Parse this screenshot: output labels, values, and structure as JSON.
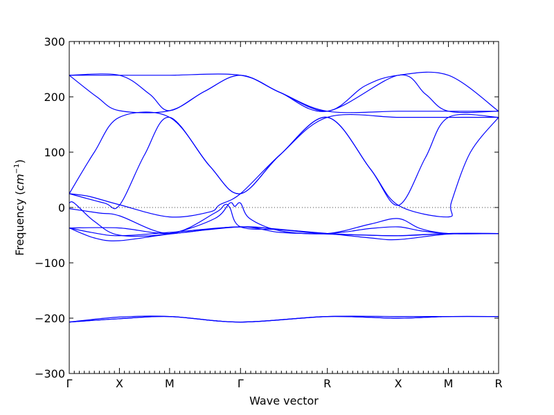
{
  "chart_data": {
    "type": "line",
    "title": "",
    "xlabel": "Wave vector",
    "ylabel": "Frequency",
    "ylabel_unit": "cm",
    "ylabel_unit_exp": "−1",
    "ylim": [
      -300,
      300
    ],
    "yticks": [
      -300,
      -200,
      -100,
      0,
      100,
      200,
      300
    ],
    "high_symmetry_points": [
      {
        "label": "Γ",
        "x": 0
      },
      {
        "label": "X",
        "x": 1
      },
      {
        "label": "M",
        "x": 2
      },
      {
        "label": "Γ",
        "x": 3.414
      },
      {
        "label": "R",
        "x": 5.146
      },
      {
        "label": "X",
        "x": 6.56
      },
      {
        "label": "M",
        "x": 7.56
      },
      {
        "label": "R",
        "x": 8.56
      }
    ],
    "zero_line": true,
    "line_color": "#0000ff",
    "series": [
      {
        "values": [
          [
            0,
            239
          ],
          [
            1,
            239
          ],
          [
            2,
            239
          ],
          [
            3.414,
            239
          ],
          [
            4.2,
            208
          ],
          [
            5.146,
            174
          ],
          [
            5.9,
            220
          ],
          [
            6.56,
            239
          ],
          [
            7.56,
            239
          ],
          [
            8.56,
            174
          ]
        ]
      },
      {
        "values": [
          [
            0,
            239
          ],
          [
            0.55,
            200
          ],
          [
            1,
            175
          ],
          [
            2,
            175
          ],
          [
            2.7,
            210
          ],
          [
            3.414,
            239
          ],
          [
            4.2,
            208
          ],
          [
            5.146,
            174
          ],
          [
            6.56,
            174
          ],
          [
            7.56,
            174
          ],
          [
            8.56,
            174
          ]
        ]
      },
      {
        "values": [
          [
            0,
            239
          ],
          [
            1,
            239
          ],
          [
            1.6,
            205
          ],
          [
            2,
            175
          ],
          [
            2.7,
            210
          ],
          [
            3.414,
            239
          ],
          [
            4.2,
            208
          ],
          [
            5.146,
            174
          ],
          [
            6.56,
            239
          ],
          [
            7.1,
            205
          ],
          [
            7.56,
            174
          ],
          [
            8.56,
            174
          ]
        ]
      },
      {
        "values": [
          [
            0,
            25
          ],
          [
            0.5,
            100
          ],
          [
            1,
            163
          ],
          [
            2,
            163
          ],
          [
            2.8,
            75
          ],
          [
            3.414,
            25
          ],
          [
            4.2,
            95
          ],
          [
            5.146,
            163
          ],
          [
            6.56,
            163
          ],
          [
            7.56,
            163
          ],
          [
            8.56,
            163
          ]
        ]
      },
      {
        "values": [
          [
            0,
            25
          ],
          [
            0.7,
            8
          ],
          [
            1,
            4
          ],
          [
            1.5,
            95
          ],
          [
            2,
            163
          ],
          [
            2.8,
            75
          ],
          [
            3.414,
            25
          ],
          [
            4.2,
            95
          ],
          [
            5.146,
            163
          ],
          [
            6.0,
            70
          ],
          [
            6.56,
            4
          ],
          [
            7.1,
            90
          ],
          [
            7.56,
            163
          ],
          [
            8.56,
            163
          ]
        ]
      },
      {
        "values": [
          [
            0,
            25
          ],
          [
            0.4,
            20
          ],
          [
            1,
            5
          ],
          [
            2,
            -17
          ],
          [
            2.8,
            -8
          ],
          [
            3.0,
            5
          ],
          [
            3.414,
            25
          ],
          [
            4.2,
            95
          ],
          [
            5.146,
            163
          ],
          [
            6.0,
            70
          ],
          [
            6.56,
            4
          ],
          [
            7.56,
            -17
          ],
          [
            7.62,
            10
          ],
          [
            8.0,
            100
          ],
          [
            8.56,
            163
          ]
        ]
      },
      {
        "values": [
          [
            0,
            8
          ],
          [
            0.1,
            8
          ],
          [
            0.5,
            -25
          ],
          [
            1,
            -50
          ],
          [
            2,
            -47
          ],
          [
            2.9,
            -20
          ],
          [
            3.2,
            8
          ],
          [
            3.3,
            2
          ],
          [
            3.414,
            8
          ],
          [
            3.6,
            -20
          ],
          [
            4.2,
            -42
          ],
          [
            5.146,
            -47
          ],
          [
            6.0,
            -30
          ],
          [
            6.56,
            -20
          ],
          [
            7.0,
            -38
          ],
          [
            7.56,
            -47
          ],
          [
            8.56,
            -47
          ]
        ]
      },
      {
        "values": [
          [
            0,
            -2
          ],
          [
            0.6,
            -10
          ],
          [
            1,
            -15
          ],
          [
            2,
            -47
          ],
          [
            2.9,
            -10
          ],
          [
            3.1,
            5
          ],
          [
            3.2,
            0
          ],
          [
            3.414,
            -35
          ],
          [
            4.2,
            -40
          ],
          [
            5.146,
            -47
          ],
          [
            6.0,
            -38
          ],
          [
            6.56,
            -35
          ],
          [
            7.0,
            -42
          ],
          [
            7.56,
            -47
          ],
          [
            8.56,
            -47
          ]
        ]
      },
      {
        "values": [
          [
            0,
            -37
          ],
          [
            0.5,
            -55
          ],
          [
            1,
            -60
          ],
          [
            2,
            -48
          ],
          [
            3.414,
            -35
          ],
          [
            4.2,
            -40
          ],
          [
            5.146,
            -47
          ],
          [
            6.0,
            -55
          ],
          [
            6.56,
            -58
          ],
          [
            7.56,
            -48
          ],
          [
            8.56,
            -47
          ]
        ]
      },
      {
        "values": [
          [
            0,
            -37
          ],
          [
            0.5,
            -46
          ],
          [
            1,
            -51
          ],
          [
            2,
            -45
          ],
          [
            3.414,
            -35
          ],
          [
            4.2,
            -45
          ],
          [
            5.146,
            -48
          ],
          [
            6.0,
            -50
          ],
          [
            6.56,
            -51
          ],
          [
            7.56,
            -47
          ],
          [
            8.56,
            -47
          ]
        ]
      },
      {
        "values": [
          [
            0,
            -37
          ],
          [
            1,
            -37
          ],
          [
            2,
            -47
          ],
          [
            3.414,
            -35
          ],
          [
            5.146,
            -47
          ],
          [
            6.56,
            -51
          ],
          [
            7.56,
            -47
          ],
          [
            8.56,
            -47
          ]
        ]
      },
      {
        "values": [
          [
            0,
            -207
          ],
          [
            1,
            -198
          ],
          [
            2,
            -197
          ],
          [
            3.414,
            -207
          ],
          [
            5.146,
            -197
          ],
          [
            6.56,
            -197
          ],
          [
            7.56,
            -197
          ],
          [
            8.56,
            -197
          ]
        ]
      },
      {
        "values": [
          [
            0,
            -207
          ],
          [
            1,
            -201
          ],
          [
            2,
            -197
          ],
          [
            3.414,
            -207
          ],
          [
            5.146,
            -197
          ],
          [
            6.56,
            -200
          ],
          [
            7.56,
            -197
          ],
          [
            8.56,
            -197
          ]
        ]
      },
      {
        "values": [
          [
            0,
            -207
          ],
          [
            1,
            -201
          ],
          [
            2,
            -197
          ],
          [
            3.414,
            -207
          ],
          [
            5.146,
            -197
          ],
          [
            6.56,
            -200
          ],
          [
            7.56,
            -197
          ],
          [
            8.56,
            -197
          ]
        ]
      }
    ]
  }
}
